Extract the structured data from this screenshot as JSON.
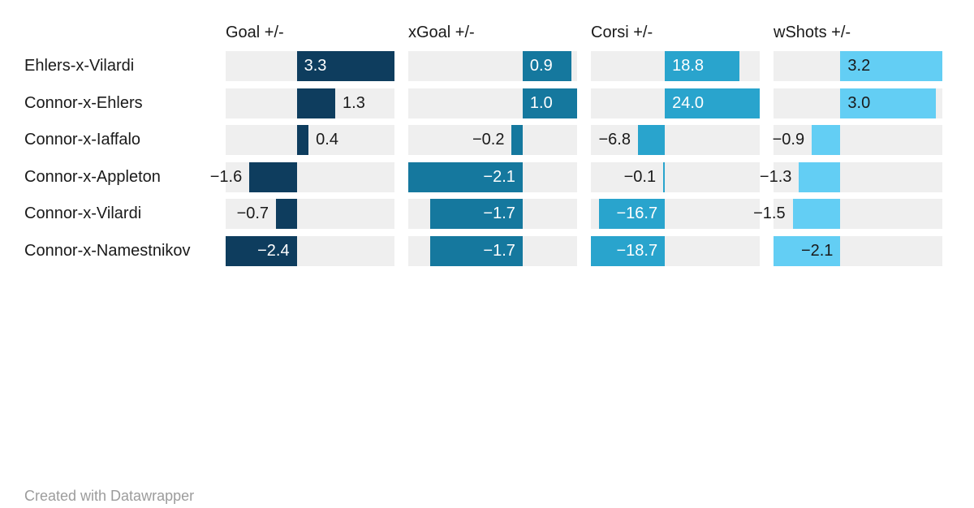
{
  "attribution": "Created with Datawrapper",
  "columns": [
    {
      "header": "Goal +/-",
      "bar_color": "#0e3d5e",
      "inside_label_color": "#ffffff"
    },
    {
      "header": "xGoal +/-",
      "bar_color": "#15789e",
      "inside_label_color": "#ffffff"
    },
    {
      "header": "Corsi +/-",
      "bar_color": "#29a4cd",
      "inside_label_color": "#ffffff"
    },
    {
      "header": "wShots +/-",
      "bar_color": "#63cef4",
      "inside_label_color": "#1a1a1a"
    }
  ],
  "rows": [
    {
      "label": "Ehlers-x-Vilardi",
      "values": [
        3.3,
        0.9,
        18.8,
        3.2
      ],
      "value_labels": [
        "3.3",
        "0.9",
        "18.8",
        "3.2"
      ]
    },
    {
      "label": "Connor-x-Ehlers",
      "values": [
        1.3,
        1.0,
        24.0,
        3.0
      ],
      "value_labels": [
        "1.3",
        "1.0",
        "24.0",
        "3.0"
      ]
    },
    {
      "label": "Connor-x-Iaffalo",
      "values": [
        0.4,
        -0.2,
        -6.8,
        -0.9
      ],
      "value_labels": [
        "0.4",
        "−0.2",
        "−6.8",
        "−0.9"
      ]
    },
    {
      "label": "Connor-x-Appleton",
      "values": [
        -1.6,
        -2.1,
        -0.1,
        -1.3
      ],
      "value_labels": [
        "−1.6",
        "−2.1",
        "−0.1",
        "−1.3"
      ]
    },
    {
      "label": "Connor-x-Vilardi",
      "values": [
        -0.7,
        -1.7,
        -16.7,
        -1.5
      ],
      "value_labels": [
        "−0.7",
        "−1.7",
        "−16.7",
        "−1.5"
      ]
    },
    {
      "label": "Connor-x-Namestnikov",
      "values": [
        -2.4,
        -1.7,
        -18.7,
        -2.1
      ],
      "value_labels": [
        "−2.4",
        "−1.7",
        "−18.7",
        "−2.1"
      ]
    }
  ],
  "colors": {
    "background": "#ffffff",
    "track": "#efefef",
    "text": "#1a1a1a",
    "attribution": "#9c9c9c"
  },
  "chart_data": {
    "type": "bar",
    "orientation": "horizontal",
    "layout": "small-multiples",
    "categories": [
      "Ehlers-x-Vilardi",
      "Connor-x-Ehlers",
      "Connor-x-Iaffalo",
      "Connor-x-Appleton",
      "Connor-x-Vilardi",
      "Connor-x-Namestnikov"
    ],
    "series": [
      {
        "name": "Goal +/-",
        "values": [
          3.3,
          1.3,
          0.4,
          -1.6,
          -0.7,
          -2.4
        ],
        "xlim": [
          -2.4,
          3.3
        ],
        "color": "#0e3d5e"
      },
      {
        "name": "xGoal +/-",
        "values": [
          0.9,
          1.0,
          -0.2,
          -2.1,
          -1.7,
          -1.7
        ],
        "xlim": [
          -2.1,
          1.0
        ],
        "color": "#15789e"
      },
      {
        "name": "Corsi +/-",
        "values": [
          18.8,
          24.0,
          -6.8,
          -0.1,
          -16.7,
          -18.7
        ],
        "xlim": [
          -18.7,
          24.0
        ],
        "color": "#29a4cd"
      },
      {
        "name": "wShots +/-",
        "values": [
          3.2,
          3.0,
          -0.9,
          -1.3,
          -1.5,
          -2.1
        ],
        "xlim": [
          -2.1,
          3.2
        ],
        "color": "#63cef4"
      }
    ],
    "grid": false,
    "legend": false,
    "value_labels_shown": true,
    "attribution": "Created with Datawrapper"
  }
}
